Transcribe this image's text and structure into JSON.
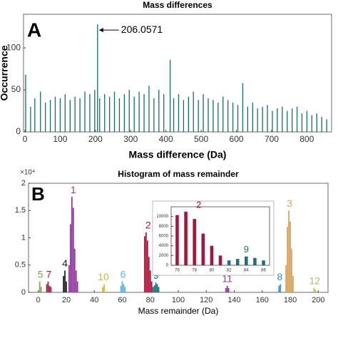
{
  "chart_data": [
    {
      "type": "stem",
      "panel": "A",
      "title": "Mass differences",
      "xlabel": "Mass difference (Da)",
      "ylabel": "Occurrence",
      "x": [
        2,
        16,
        28,
        44,
        58,
        72,
        86,
        100,
        114,
        128,
        142,
        156,
        170,
        184,
        198,
        206,
        212,
        226,
        240,
        254,
        268,
        282,
        296,
        310,
        324,
        338,
        352,
        366,
        380,
        394,
        412,
        422,
        436,
        450,
        464,
        478,
        492,
        506,
        520,
        534,
        548,
        562,
        576,
        590,
        604,
        618,
        632,
        646,
        660,
        674,
        688,
        702,
        716,
        730,
        744,
        758,
        772,
        786,
        800,
        814,
        828,
        842,
        856
      ],
      "values": [
        68,
        30,
        40,
        48,
        35,
        38,
        42,
        40,
        45,
        38,
        42,
        40,
        48,
        45,
        50,
        128,
        40,
        45,
        42,
        48,
        40,
        45,
        50,
        42,
        48,
        45,
        55,
        40,
        50,
        45,
        86,
        40,
        45,
        38,
        42,
        48,
        38,
        45,
        40,
        38,
        35,
        42,
        38,
        35,
        32,
        58,
        30,
        35,
        28,
        30,
        32,
        25,
        28,
        30,
        25,
        28,
        30,
        22,
        25,
        20,
        22,
        18,
        15
      ],
      "color": "#1a6b6b",
      "annotation": {
        "text": "206.0571",
        "x": 206,
        "y": 128
      },
      "xlim": [
        -4,
        870
      ],
      "ylim": [
        0,
        140
      ],
      "xticks": [
        0,
        100,
        200,
        300,
        400,
        500,
        600,
        700,
        800
      ],
      "yticks": [
        0,
        50,
        100
      ]
    },
    {
      "type": "bar",
      "panel": "B",
      "title": "Histogram of mass remainder",
      "xlabel": "Mass remainder (Da)",
      "y_multiplier": "×10⁴",
      "series": [
        {
          "name": "5",
          "color": "#77b040",
          "x": [
            1,
            2
          ],
          "values": [
            0.2,
            0.1
          ]
        },
        {
          "name": "7",
          "color": "#b01c3c",
          "x": [
            6,
            7,
            8,
            9
          ],
          "values": [
            0.15,
            0.2,
            0.12,
            0.1
          ]
        },
        {
          "name": "4",
          "color": "#222222",
          "x": [
            18,
            19,
            20
          ],
          "values": [
            0.3,
            0.4,
            0.2
          ]
        },
        {
          "name": "1",
          "color": "#8b3a96",
          "x": [
            22,
            23,
            24,
            25,
            26,
            27,
            28
          ],
          "values": [
            0.5,
            1.25,
            1.75,
            1.55,
            0.8,
            0.4,
            0.2
          ]
        },
        {
          "name": "10",
          "color": "#e0b030",
          "x": [
            46,
            47
          ],
          "values": [
            0.1,
            0.15
          ]
        },
        {
          "name": "6",
          "color": "#5bb8e8",
          "x": [
            59,
            60,
            61,
            62
          ],
          "values": [
            0.12,
            0.2,
            0.15,
            0.1
          ]
        },
        {
          "name": "2",
          "color": "#a01838",
          "x": [
            76,
            77,
            78,
            79,
            80,
            81
          ],
          "values": [
            1.03,
            1.1,
            0.95,
            0.65,
            0.4,
            0.2
          ]
        },
        {
          "name": "9",
          "color": "#1f7078",
          "x": [
            82,
            83,
            84,
            85,
            86
          ],
          "values": [
            0.1,
            0.13,
            0.18,
            0.15,
            0.1
          ]
        },
        {
          "name": "11",
          "color": "#8b3a96",
          "x": [
            134,
            135,
            136
          ],
          "values": [
            0.08,
            0.12,
            0.08
          ]
        },
        {
          "name": "8",
          "color": "#3a8fd0",
          "x": [
            172,
            173
          ],
          "values": [
            0.12,
            0.15
          ]
        },
        {
          "name": "3",
          "color": "#d9a35a",
          "x": [
            177,
            178,
            179,
            180,
            181,
            182
          ],
          "values": [
            0.5,
            1.2,
            1.5,
            1.3,
            0.8,
            0.3
          ]
        },
        {
          "name": "12",
          "color": "#a8c860",
          "x": [
            197,
            198
          ],
          "values": [
            0.08,
            0.05
          ]
        }
      ],
      "xlim": [
        -7,
        207
      ],
      "ylim": [
        0,
        2
      ],
      "xticks": [
        0,
        20,
        40,
        60,
        80,
        100,
        120,
        140,
        160,
        180,
        200
      ],
      "yticks": [
        0,
        0.5,
        1,
        1.5,
        2
      ]
    },
    {
      "type": "bar",
      "series": [
        {
          "name": "2",
          "color": "#a01838",
          "x": [
            76,
            77,
            78,
            79,
            80,
            81
          ],
          "values": [
            10300,
            11000,
            9500,
            6500,
            4000,
            2000
          ]
        },
        {
          "name": "9",
          "color": "#1f7078",
          "x": [
            82,
            83,
            84,
            85,
            86
          ],
          "values": [
            1000,
            1300,
            1800,
            1500,
            1000
          ]
        }
      ],
      "xlim": [
        75.3,
        86.7
      ],
      "ylim": [
        0,
        12000
      ],
      "xticks": [
        76,
        78,
        80,
        82,
        84,
        86
      ],
      "yticks": [
        0,
        2000,
        4000,
        6000,
        8000,
        10000
      ]
    }
  ]
}
